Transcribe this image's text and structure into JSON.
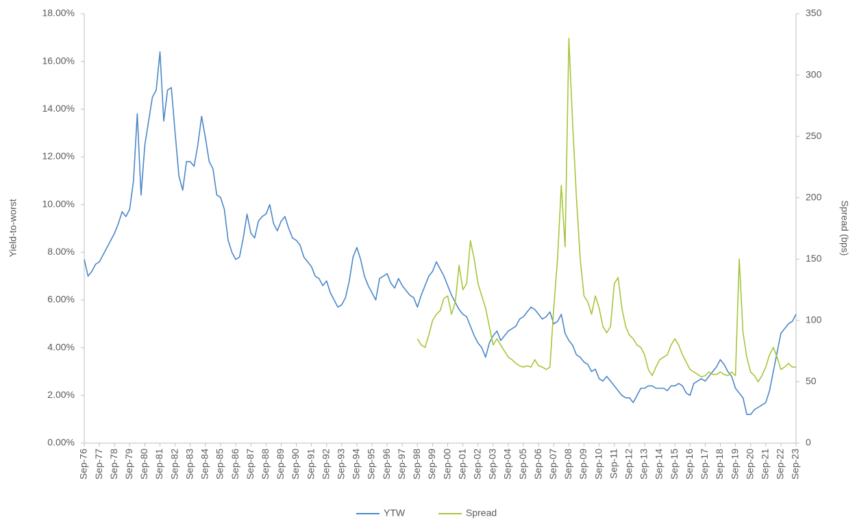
{
  "chart_data": {
    "type": "line",
    "y_label": "Yield-to-worst",
    "y2_label": "Spread (bps)",
    "categories": [
      "Sep-76",
      null,
      null,
      null,
      "Sep-77",
      null,
      null,
      null,
      "Sep-78",
      null,
      null,
      null,
      "Sep-79",
      null,
      null,
      null,
      "Sep-80",
      null,
      null,
      null,
      "Sep-81",
      null,
      null,
      null,
      "Sep-82",
      null,
      null,
      null,
      "Sep-83",
      null,
      null,
      null,
      "Sep-84",
      null,
      null,
      null,
      "Sep-85",
      null,
      null,
      null,
      "Sep-86",
      null,
      null,
      null,
      "Sep-87",
      null,
      null,
      null,
      "Sep-88",
      null,
      null,
      null,
      "Sep-89",
      null,
      null,
      null,
      "Sep-90",
      null,
      null,
      null,
      "Sep-91",
      null,
      null,
      null,
      "Sep-92",
      null,
      null,
      null,
      "Sep-93",
      null,
      null,
      null,
      "Sep-94",
      null,
      null,
      null,
      "Sep-95",
      null,
      null,
      null,
      "Sep-96",
      null,
      null,
      null,
      "Sep-97",
      null,
      null,
      null,
      "Sep-98",
      null,
      null,
      null,
      "Sep-99",
      null,
      null,
      null,
      "Sep-00",
      null,
      null,
      null,
      "Sep-01",
      null,
      null,
      null,
      "Sep-02",
      null,
      null,
      null,
      "Sep-03",
      null,
      null,
      null,
      "Sep-04",
      null,
      null,
      null,
      "Sep-05",
      null,
      null,
      null,
      "Sep-06",
      null,
      null,
      null,
      "Sep-07",
      null,
      null,
      null,
      "Sep-08",
      null,
      null,
      null,
      "Sep-09",
      null,
      null,
      null,
      "Sep-10",
      null,
      null,
      null,
      "Sep-11",
      null,
      null,
      null,
      "Sep-12",
      null,
      null,
      null,
      "Sep-13",
      null,
      null,
      null,
      "Sep-14",
      null,
      null,
      null,
      "Sep-15",
      null,
      null,
      null,
      "Sep-16",
      null,
      null,
      null,
      "Sep-17",
      null,
      null,
      null,
      "Sep-18",
      null,
      null,
      null,
      "Sep-19",
      null,
      null,
      null,
      "Sep-20",
      null,
      null,
      null,
      "Sep-21",
      null,
      null,
      null,
      "Sep-22",
      null,
      null,
      null,
      "Sep-23"
    ],
    "series": [
      {
        "name": "YTW",
        "color": "#4a86c8",
        "axis": "y",
        "values": [
          7.7,
          7.0,
          7.2,
          7.5,
          7.6,
          7.9,
          8.2,
          8.5,
          8.8,
          9.2,
          9.7,
          9.5,
          9.8,
          11.0,
          13.8,
          10.4,
          12.5,
          13.5,
          14.5,
          14.8,
          16.4,
          13.5,
          14.8,
          14.9,
          13.0,
          11.2,
          10.6,
          11.8,
          11.8,
          11.6,
          12.5,
          13.7,
          12.8,
          11.8,
          11.5,
          10.4,
          10.3,
          9.8,
          8.5,
          8.0,
          7.7,
          7.8,
          8.6,
          9.6,
          8.8,
          8.6,
          9.3,
          9.5,
          9.6,
          10.0,
          9.2,
          8.9,
          9.3,
          9.5,
          9.0,
          8.6,
          8.5,
          8.3,
          7.8,
          7.6,
          7.4,
          7.0,
          6.9,
          6.6,
          6.8,
          6.3,
          6.0,
          5.7,
          5.8,
          6.1,
          6.8,
          7.8,
          8.2,
          7.7,
          7.0,
          6.6,
          6.3,
          6.0,
          6.9,
          7.0,
          7.1,
          6.7,
          6.5,
          6.9,
          6.6,
          6.4,
          6.2,
          6.1,
          5.7,
          6.2,
          6.6,
          7.0,
          7.2,
          7.6,
          7.3,
          7.0,
          6.6,
          6.2,
          5.9,
          5.6,
          5.4,
          5.3,
          4.9,
          4.5,
          4.2,
          4.0,
          3.6,
          4.2,
          4.5,
          4.7,
          4.3,
          4.5,
          4.7,
          4.8,
          4.9,
          5.2,
          5.3,
          5.5,
          5.7,
          5.6,
          5.4,
          5.2,
          5.3,
          5.5,
          5.0,
          5.1,
          5.4,
          4.6,
          4.3,
          4.1,
          3.7,
          3.6,
          3.4,
          3.3,
          3.0,
          3.1,
          2.7,
          2.6,
          2.8,
          2.6,
          2.4,
          2.2,
          2.0,
          1.9,
          1.9,
          1.7,
          2.0,
          2.3,
          2.3,
          2.4,
          2.4,
          2.3,
          2.3,
          2.3,
          2.2,
          2.4,
          2.4,
          2.5,
          2.4,
          2.1,
          2.0,
          2.5,
          2.6,
          2.7,
          2.6,
          2.8,
          3.0,
          3.2,
          3.5,
          3.3,
          3.0,
          2.8,
          2.3,
          2.1,
          1.9,
          1.2,
          1.2,
          1.4,
          1.5,
          1.6,
          1.7,
          2.2,
          3.0,
          3.8,
          4.6,
          4.8,
          5.0,
          5.1,
          5.4
        ]
      },
      {
        "name": "Spread",
        "color": "#a5c53a",
        "axis": "y2",
        "values": [
          null,
          null,
          null,
          null,
          null,
          null,
          null,
          null,
          null,
          null,
          null,
          null,
          null,
          null,
          null,
          null,
          null,
          null,
          null,
          null,
          null,
          null,
          null,
          null,
          null,
          null,
          null,
          null,
          null,
          null,
          null,
          null,
          null,
          null,
          null,
          null,
          null,
          null,
          null,
          null,
          null,
          null,
          null,
          null,
          null,
          null,
          null,
          null,
          null,
          null,
          null,
          null,
          null,
          null,
          null,
          null,
          null,
          null,
          null,
          null,
          null,
          null,
          null,
          null,
          null,
          null,
          null,
          null,
          null,
          null,
          null,
          null,
          null,
          null,
          null,
          null,
          null,
          null,
          null,
          null,
          null,
          null,
          null,
          null,
          null,
          null,
          null,
          null,
          85,
          80,
          78,
          88,
          100,
          105,
          108,
          118,
          120,
          105,
          115,
          145,
          125,
          130,
          165,
          150,
          130,
          120,
          110,
          95,
          80,
          85,
          80,
          75,
          70,
          68,
          65,
          63,
          62,
          63,
          62,
          68,
          63,
          62,
          60,
          62,
          110,
          150,
          210,
          160,
          330,
          260,
          200,
          150,
          120,
          115,
          105,
          120,
          110,
          95,
          90,
          95,
          130,
          135,
          110,
          95,
          88,
          85,
          80,
          78,
          72,
          60,
          55,
          62,
          68,
          70,
          72,
          80,
          85,
          80,
          72,
          66,
          60,
          58,
          56,
          54,
          55,
          58,
          56,
          56,
          58,
          56,
          55,
          58,
          55,
          150,
          90,
          70,
          58,
          55,
          50,
          55,
          62,
          72,
          78,
          70,
          60,
          62,
          65,
          62,
          62
        ]
      }
    ],
    "ylim": [
      0,
      18
    ],
    "yticks": [
      {
        "value": 0,
        "label": "0.00%"
      },
      {
        "value": 2,
        "label": "2.00%"
      },
      {
        "value": 4,
        "label": "4.00%"
      },
      {
        "value": 6,
        "label": "6.00%"
      },
      {
        "value": 8,
        "label": "8.00%"
      },
      {
        "value": 10,
        "label": "10.00%"
      },
      {
        "value": 12,
        "label": "12.00%"
      },
      {
        "value": 14,
        "label": "14.00%"
      },
      {
        "value": 16,
        "label": "16.00%"
      },
      {
        "value": 18,
        "label": "18.00%"
      }
    ],
    "y2lim": [
      0,
      350
    ],
    "y2ticks": [
      0,
      50,
      100,
      150,
      200,
      250,
      300,
      350
    ],
    "grid": false,
    "legend": "bottom"
  }
}
